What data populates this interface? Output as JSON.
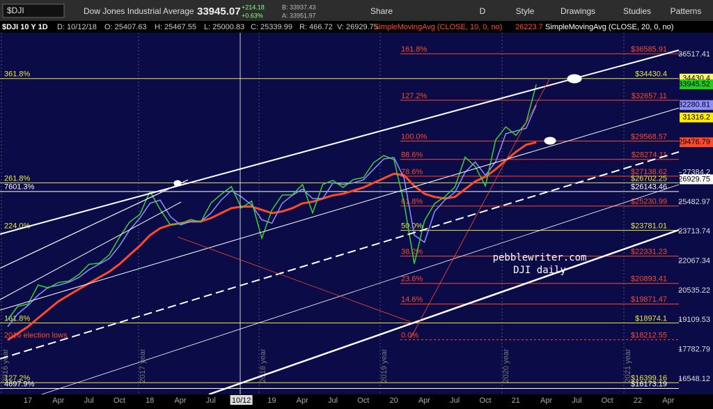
{
  "toolbar": {
    "symbol": "$DJI",
    "name": "Dow Jones Industrial Average",
    "last": "33945.07",
    "change": "+214.18",
    "change_pct": "+0.63%",
    "bid": "B: 33937.43",
    "ask": "A: 33951.97",
    "buttons": [
      "Share",
      "D",
      "Style",
      "Drawings",
      "Studies",
      "Patterns"
    ]
  },
  "info_bar": {
    "title": "$DJI 10 Y 1D",
    "fields": [
      "D: 10/12/18",
      "O: 25407.63",
      "H: 25467.55",
      "L: 25000.83",
      "C: 25339.99",
      "R: 466.72",
      "V: 26929.75"
    ],
    "study_1_value": "26223.7"
  },
  "chart_data": {
    "type": "line",
    "log_scale": true,
    "categories": [
      null,
      null,
      null,
      null,
      null,
      null,
      null,
      null,
      null,
      null,
      null,
      null,
      null,
      null,
      null,
      null,
      null,
      null,
      null,
      null,
      null,
      null,
      null,
      null,
      null,
      null,
      null,
      null,
      null,
      null,
      null,
      null,
      null,
      null,
      null,
      null,
      null,
      null,
      null,
      null,
      null,
      null,
      null,
      null,
      null,
      null,
      null,
      null,
      null,
      null,
      null,
      null,
      null
    ],
    "values": [
      19124,
      19763,
      19864,
      20812,
      20663,
      20941,
      21009,
      21350,
      21891,
      21948,
      22405,
      23377,
      24272,
      24719,
      26149,
      25029,
      24103,
      24163,
      24416,
      24271,
      25415,
      25965,
      26458,
      25116,
      25538,
      23327,
      24999,
      25916,
      25929,
      26593,
      24815,
      26600,
      26864,
      26403,
      26917,
      27046,
      28051,
      28538,
      28256,
      25409,
      21917,
      24346,
      25383,
      25813,
      26428,
      28430,
      27782,
      26502,
      29639,
      30606,
      29983,
      30932,
      33945
    ],
    "color": "#3ad13a",
    "series": [
      {
        "name": "SimpleMovingAvg (CLOSE, 10, 0, no)",
        "color": "#ff4a2a",
        "values": [
          18200,
          18500,
          18800,
          19200,
          19600,
          20000,
          20300,
          20600,
          20900,
          21200,
          21500,
          21900,
          22400,
          22900,
          23500,
          23900,
          24100,
          24200,
          24300,
          24300,
          24500,
          24800,
          25100,
          25200,
          25200,
          25000,
          24800,
          24900,
          25100,
          25400,
          25500,
          25700,
          25900,
          26000,
          26200,
          26400,
          26700,
          27000,
          27300,
          27200,
          26500,
          26000,
          25800,
          25700,
          25800,
          26300,
          26800,
          27100,
          27600,
          28200,
          28800,
          29300,
          29477
        ]
      },
      {
        "name": "SimpleMovingAvg (CLOSE, 20, 0, no)",
        "color": "#8f8fff",
        "values": [
          18800,
          19400,
          19800,
          20300,
          20700,
          20800,
          20950,
          21200,
          21600,
          21900,
          22200,
          22900,
          23800,
          24500,
          25400,
          25600,
          24600,
          24100,
          24300,
          24300,
          24800,
          25600,
          26200,
          25800,
          25300,
          24400,
          24200,
          25400,
          25900,
          26300,
          25700,
          25700,
          26700,
          26600,
          26700,
          26900,
          27600,
          28300,
          28400,
          27000,
          23500,
          23100,
          24900,
          25600,
          26100,
          27400,
          28100,
          27200,
          28100,
          30100,
          30300,
          30500,
          32281
        ]
      }
    ],
    "ylim": [
      15940,
      39230
    ],
    "yticks": [
      36517.41,
      27384.2,
      25482.97,
      23713.74,
      22067.34,
      20535.22,
      19109.53,
      17782.79,
      16548.12
    ],
    "price_tags": [
      {
        "value": 34430.4,
        "color": "#ffff66"
      },
      {
        "value": 33945.52,
        "color": "#22cc22"
      },
      {
        "value": 32280.81,
        "color": "#8f8fff"
      },
      {
        "value": 31316.2,
        "color": "#ffee00"
      },
      {
        "value": 29476.79,
        "color": "#ff4a2a"
      },
      {
        "value": 26929.75,
        "color": "#ffffff"
      }
    ],
    "x_labels": [
      "17",
      "Apr",
      "Jul",
      "Oct",
      "18",
      "Apr",
      "Jul",
      "10/12",
      "19",
      "Apr",
      "Jul",
      "Oct",
      "20",
      "Apr",
      "Jul",
      "Oct",
      "21",
      "Apr",
      "Jul",
      "Oct",
      "22",
      "Apr"
    ],
    "year_markers": [
      "2016 year",
      "2017 year",
      "2018 year",
      "2019 year",
      "2020 year",
      "2021 year"
    ],
    "levels": [
      {
        "value": 36585.91,
        "label": "$36585.91",
        "pct": "161.8%",
        "color": "#ff4a2a"
      },
      {
        "value": 34430.4,
        "label": "$34430.4",
        "left": "361.8%",
        "color": "#e8e84a"
      },
      {
        "value": 32657.11,
        "label": "$32657.11",
        "pct": "127.2%",
        "color": "#ff4a2a"
      },
      {
        "value": 29568.57,
        "label": "$29568.57",
        "pct": "100.0%",
        "color": "#ff4a2a"
      },
      {
        "value": 28274.11,
        "label": "$28274.11",
        "pct": "88.6%",
        "color": "#ff4a2a"
      },
      {
        "value": 27138.62,
        "label": "$27138.62",
        "pct": "78.6%",
        "color": "#ff4a2a"
      },
      {
        "value": 26702.25,
        "label": "$26702.25",
        "left": "261.8%",
        "color": "#e8e84a"
      },
      {
        "value": 26143.46,
        "label": "$26143.46",
        "left": "7601.3%",
        "color": "#ffffff"
      },
      {
        "value": 25230.99,
        "label": "$25230.99",
        "pct": "61.8%",
        "color": "#ff4a2a"
      },
      {
        "value": 23781.01,
        "label": "$23781.01",
        "pct": "50.0%",
        "left": "224.0%",
        "color": "#e8e84a"
      },
      {
        "value": 22331.23,
        "label": "$22331.23",
        "pct": "38.2%",
        "color": "#ff4a2a"
      },
      {
        "value": 20893.41,
        "label": "$20893.41",
        "pct": "23.6%",
        "color": "#ff4a2a"
      },
      {
        "value": 19871.47,
        "label": "$19871.47",
        "pct": "14.6%",
        "color": "#ff4a2a"
      },
      {
        "value": 18974.1,
        "label": "$18974.1",
        "left": "161.8%",
        "color": "#e8e84a"
      },
      {
        "value": 18212.55,
        "label": "$18212.55",
        "pct": "0.0%",
        "left": "2016 election lows",
        "color": "#ff4a2a"
      },
      {
        "value": 16399.16,
        "label": "$16399.16",
        "left": "127.2%",
        "color": "#e8e84a"
      },
      {
        "value": 16173.19,
        "label": "$16173.19",
        "left": "4697.9%",
        "color": "#ffffff"
      }
    ],
    "annotations": [
      "pebblewriter.com",
      "DJI daily"
    ]
  }
}
